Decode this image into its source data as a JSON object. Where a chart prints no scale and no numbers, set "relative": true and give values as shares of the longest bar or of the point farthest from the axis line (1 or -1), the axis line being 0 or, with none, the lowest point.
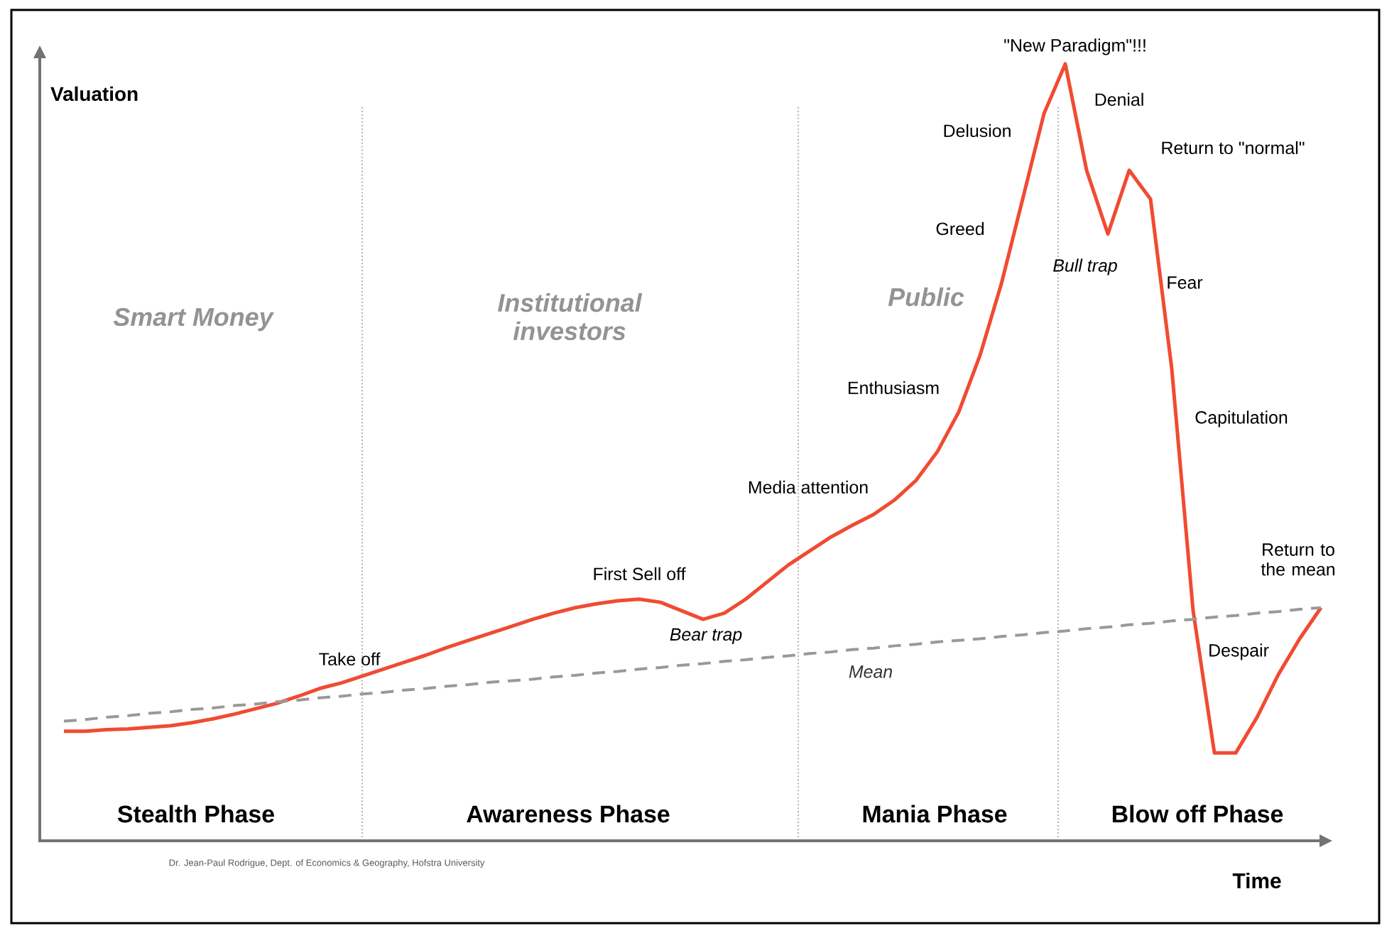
{
  "chart_data": {
    "type": "line",
    "relative": true,
    "xlabel": "Time",
    "ylabel": "Valuation",
    "categories": [
      null,
      null,
      null,
      null,
      null,
      null,
      null,
      null,
      null,
      null,
      null,
      null,
      null,
      null,
      null,
      null,
      null,
      null,
      null,
      null,
      null,
      null,
      null,
      null,
      null,
      null,
      null,
      null,
      null,
      null,
      null,
      null,
      null,
      null,
      null,
      null,
      null,
      null,
      null,
      null,
      null,
      null,
      null,
      null,
      null,
      null,
      null,
      null,
      null,
      null,
      null,
      null,
      null,
      null,
      null,
      null,
      null,
      null,
      null,
      null
    ],
    "series": [
      {
        "color": "#f04b32",
        "line_style": "solid",
        "values": [
          0.141,
          0.141,
          0.143,
          0.144,
          0.146,
          0.148,
          0.152,
          0.157,
          0.163,
          0.17,
          0.177,
          0.186,
          0.196,
          0.203,
          0.212,
          0.221,
          0.23,
          0.239,
          0.249,
          0.258,
          0.267,
          0.276,
          0.285,
          0.293,
          0.3,
          0.305,
          0.309,
          0.311,
          0.307,
          0.296,
          0.285,
          0.293,
          0.311,
          0.333,
          0.355,
          0.373,
          0.391,
          0.406,
          0.42,
          0.439,
          0.464,
          0.501,
          0.552,
          0.625,
          0.717,
          0.826,
          0.936,
          1,
          0.863,
          0.781,
          0.863,
          0.826,
          0.607,
          0.296,
          0.113,
          0.113,
          0.159,
          0.214,
          0.26,
          0.3
        ]
      },
      {
        "name": "Mean",
        "type": "line",
        "color": "#999999",
        "line_style": "dashed",
        "values": [
          0.154,
          0.156,
          0.159,
          0.161,
          0.164,
          0.166,
          0.169,
          0.171,
          0.174,
          0.176,
          0.179,
          0.181,
          0.184,
          0.186,
          0.189,
          0.191,
          0.194,
          0.196,
          0.199,
          0.201,
          0.204,
          0.206,
          0.208,
          0.211,
          0.213,
          0.216,
          0.218,
          0.221,
          0.223,
          0.226,
          0.228,
          0.231,
          0.233,
          0.236,
          0.238,
          0.241,
          0.243,
          0.246,
          0.248,
          0.251,
          0.253,
          0.256,
          0.258,
          0.26,
          0.263,
          0.265,
          0.268,
          0.27,
          0.273,
          0.275,
          0.278,
          0.28,
          0.283,
          0.285,
          0.288,
          0.29,
          0.293,
          0.295,
          0.298,
          0.3
        ]
      }
    ],
    "annotations": [
      "\"New Paradigm\"!!!",
      "Denial",
      "Return to \"normal\"",
      "Delusion",
      "Greed",
      "Bull trap",
      "Fear",
      "Enthusiasm",
      "Capitulation",
      "Media attention",
      "First Sell off",
      "Bear trap",
      "Take off",
      "Return to the mean",
      "Despair",
      "Smart Money",
      "Institutional investors",
      "Public",
      "Stealth Phase",
      "Awareness Phase",
      "Mania Phase",
      "Blow off Phase",
      "Dr. Jean-Paul Rodrigue, Dept. of Economics & Geography, Hofstra University"
    ]
  }
}
